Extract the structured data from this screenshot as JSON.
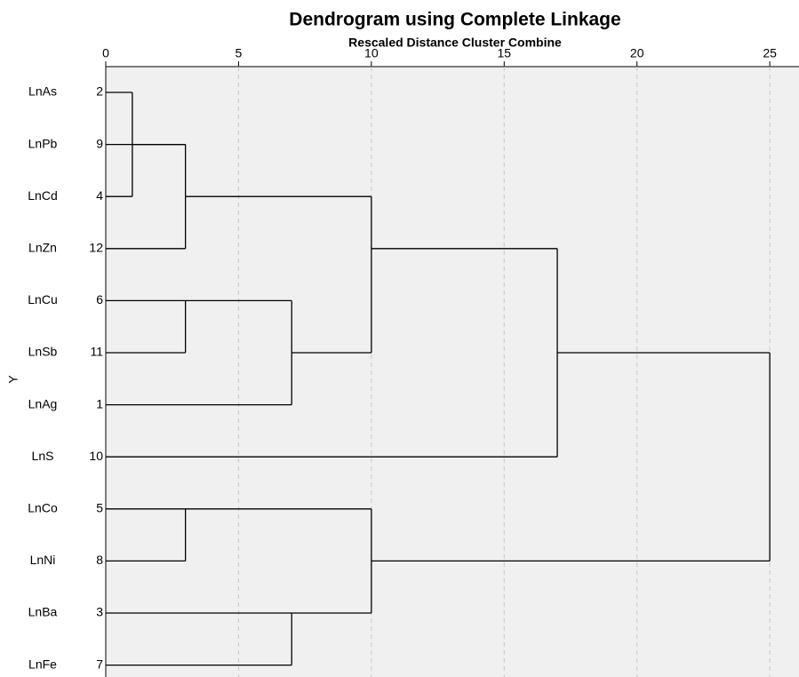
{
  "chart_data": {
    "type": "dendrogram",
    "title": "Dendrogram using Complete Linkage",
    "subtitle": "Rescaled Distance Cluster Combine",
    "ylabel": "Y",
    "labels": [
      "LnAs",
      "LnPb",
      "LnCd",
      "LnZn",
      "LnCu",
      "LnSb",
      "LnAg",
      "LnS",
      "LnCo",
      "LnNi",
      "LnBa",
      "LnFe"
    ],
    "case_numbers": [
      2,
      9,
      4,
      12,
      6,
      11,
      1,
      10,
      5,
      8,
      3,
      7
    ],
    "xlim": [
      0,
      26.1
    ],
    "xticks": [
      0,
      5,
      10,
      15,
      20,
      25
    ],
    "grid": true,
    "tree": {
      "distance": 25,
      "children": [
        {
          "distance": 17,
          "children": [
            {
              "distance": 10,
              "children": [
                {
                  "distance": 3,
                  "children": [
                    {
                      "distance": 3,
                      "children": [
                        {
                          "distance": 1,
                          "children": [
                            0,
                            2
                          ]
                        },
                        1
                      ]
                    },
                    3
                  ]
                },
                {
                  "distance": 7,
                  "children": [
                    {
                      "distance": 3,
                      "children": [
                        4,
                        5
                      ]
                    },
                    6
                  ]
                }
              ]
            },
            7
          ]
        },
        {
          "distance": 10,
          "children": [
            {
              "distance": 3,
              "children": [
                8,
                9
              ]
            },
            {
              "distance": 7,
              "children": [
                10,
                11
              ]
            }
          ]
        }
      ]
    }
  }
}
